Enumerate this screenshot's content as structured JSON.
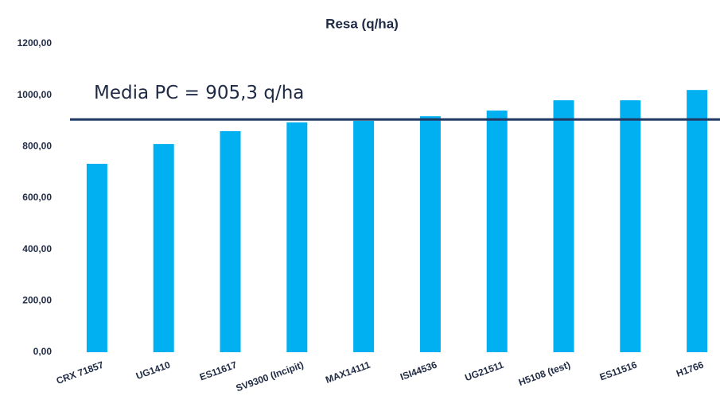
{
  "chart_data": {
    "type": "bar",
    "title": "Resa (q/ha)",
    "categories": [
      "CRX 71857",
      "UG1410",
      "ES11617",
      "SV9300 (Incipit)",
      "MAX14111",
      "ISI44536",
      "UG21511",
      "H5108 (test)",
      "ES11516",
      "H1766"
    ],
    "values": [
      733,
      810,
      860,
      894,
      900,
      918,
      940,
      980,
      980,
      1020
    ],
    "color": "#00b0f0",
    "ylim": [
      0,
      1200
    ],
    "yticks": [
      {
        "value": 0,
        "label": "0,00"
      },
      {
        "value": 200,
        "label": "200,00"
      },
      {
        "value": 400,
        "label": "400,00"
      },
      {
        "value": 600,
        "label": "600,00"
      },
      {
        "value": 800,
        "label": "800,00"
      },
      {
        "value": 1000,
        "label": "1000,00"
      },
      {
        "value": 1200,
        "label": "1200,00"
      }
    ],
    "grid": false,
    "reference_line": {
      "value": 905.3,
      "label": "Media PC = 905,3 q/ha",
      "color": "#1f3864"
    }
  }
}
